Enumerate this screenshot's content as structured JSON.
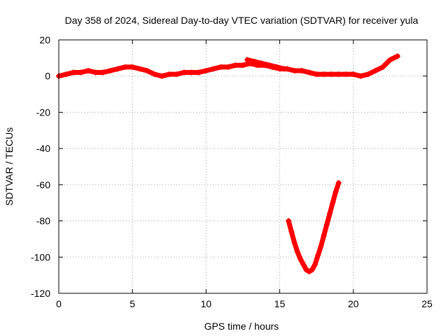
{
  "chart_data": {
    "type": "scatter",
    "title": "Day 358 of 2024, Sidereal Day-to-day VTEC variation (SDTVAR) for receiver yula",
    "xlabel": "GPS time / hours",
    "ylabel": "SDTVAR / TECUs",
    "xlim": [
      0,
      25
    ],
    "ylim": [
      -120,
      20
    ],
    "xticks": [
      0,
      5,
      10,
      15,
      20,
      25
    ],
    "yticks": [
      20,
      0,
      -20,
      -40,
      -60,
      -80,
      -100,
      -120
    ],
    "grid": true,
    "legend": "none",
    "series": [
      {
        "color": "#ff0000",
        "x": [
          0.0,
          0.5,
          1.0,
          1.5,
          2.0,
          2.5,
          3.0,
          3.5,
          4.0,
          4.5,
          5.0,
          5.5,
          6.0,
          6.5,
          7.0,
          7.5,
          8.0,
          8.5,
          9.0,
          9.5,
          10.0,
          10.5,
          11.0,
          11.5,
          12.0,
          12.5,
          13.0,
          13.5,
          14.0,
          14.5,
          15.0,
          15.5,
          16.0,
          16.5,
          17.0,
          17.5,
          18.0,
          18.5,
          19.0,
          19.5,
          20.0,
          20.5,
          21.0,
          21.5,
          22.0,
          22.5,
          23.0
        ],
        "y": [
          0,
          1,
          2,
          2,
          3,
          2,
          2,
          3,
          4,
          5,
          5,
          4,
          3,
          1,
          0,
          1,
          1,
          2,
          2,
          2,
          3,
          4,
          5,
          5,
          6,
          6,
          7,
          6,
          6,
          5,
          4,
          4,
          3,
          3,
          2,
          1,
          1,
          1,
          1,
          1,
          1,
          0,
          1,
          3,
          5,
          9,
          11
        ]
      },
      {
        "color": "#ff0000",
        "x": [
          12.8,
          13.3,
          13.8,
          14.3,
          14.8,
          15.3
        ],
        "y": [
          9,
          8,
          7,
          6,
          5,
          4
        ]
      },
      {
        "color": "#ff0000",
        "x": [
          15.6,
          15.8,
          16.0,
          16.2,
          16.4,
          16.6,
          16.8,
          17.0,
          17.2,
          17.4,
          17.6,
          17.8,
          18.0,
          18.2,
          18.4,
          18.6,
          18.8,
          19.0
        ],
        "y": [
          -80,
          -86,
          -92,
          -97,
          -101,
          -104,
          -107,
          -108,
          -107,
          -104,
          -99,
          -94,
          -88,
          -82,
          -76,
          -70,
          -64,
          -59
        ]
      }
    ]
  }
}
